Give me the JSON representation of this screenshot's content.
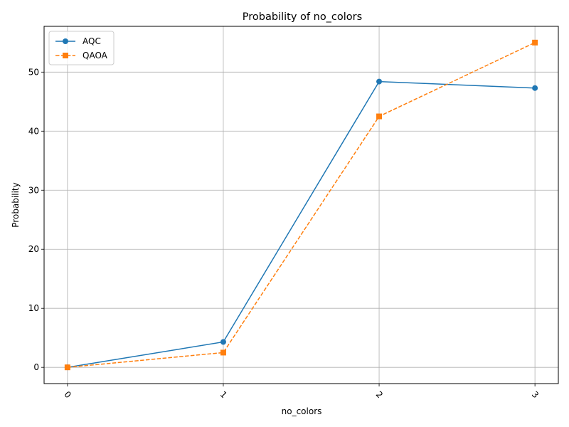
{
  "chart_data": {
    "type": "line",
    "title": "Probability of no_colors",
    "xlabel": "no_colors",
    "ylabel": "Probability",
    "categories": [
      "0",
      "1",
      "2",
      "3"
    ],
    "x": [
      0,
      1,
      2,
      3
    ],
    "xlim": [
      -0.15,
      3.15
    ],
    "ylim": [
      -2.75,
      57.75
    ],
    "yticks": [
      0,
      10,
      20,
      30,
      40,
      50
    ],
    "grid": true,
    "legend_position": "upper-left",
    "series": [
      {
        "name": "AQC",
        "values": [
          0.0,
          4.3,
          48.4,
          47.3
        ],
        "color": "#1f77b4",
        "marker": "circle",
        "linestyle": "solid"
      },
      {
        "name": "QAOA",
        "values": [
          0.0,
          2.5,
          42.5,
          55.0
        ],
        "color": "#ff7f0e",
        "marker": "square",
        "linestyle": "dashed"
      }
    ]
  }
}
